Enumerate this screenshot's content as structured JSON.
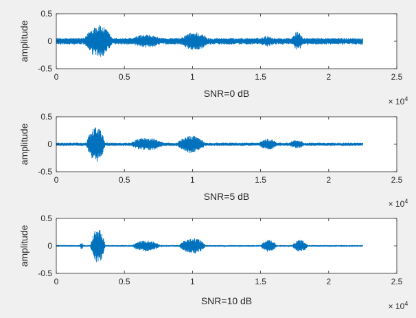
{
  "figure": {
    "background": "#f0f0f0",
    "axes_background": "#ffffff",
    "axis_color": "#262626",
    "line_color": "#0072bd"
  },
  "chart_data": [
    {
      "type": "line",
      "title": "",
      "xlabel": "SNR=0 dB",
      "ylabel": "amplitude",
      "xlim": [
        0,
        25000
      ],
      "ylim": [
        -0.5,
        0.5
      ],
      "x_multiplier_label": "× 10",
      "x_multiplier_exponent": "4",
      "xticks": [
        0,
        5000,
        10000,
        15000,
        20000,
        25000
      ],
      "xtick_labels": [
        "0",
        "0.5",
        "1",
        "1.5",
        "2",
        "2.5"
      ],
      "yticks": [
        -0.5,
        0,
        0.5
      ],
      "ytick_labels": [
        "-0.5",
        "0",
        "0.5"
      ],
      "grid": false,
      "series_x_range": [
        0,
        22500
      ],
      "bursts": [
        {
          "x": [
            2000,
            4200
          ],
          "amplitude": 0.3
        },
        {
          "x": [
            5200,
            8000
          ],
          "amplitude": 0.12
        },
        {
          "x": [
            9000,
            11300
          ],
          "amplitude": 0.17
        },
        {
          "x": [
            14800,
            16200
          ],
          "amplitude": 0.1
        },
        {
          "x": [
            17200,
            18200
          ],
          "amplitude": 0.17
        }
      ],
      "noise_amplitude": 0.06
    },
    {
      "type": "line",
      "title": "",
      "xlabel": "SNR=5 dB",
      "ylabel": "amplitude",
      "xlim": [
        0,
        25000
      ],
      "ylim": [
        -0.5,
        0.5
      ],
      "x_multiplier_label": "× 10",
      "x_multiplier_exponent": "4",
      "xticks": [
        0,
        5000,
        10000,
        15000,
        20000,
        25000
      ],
      "xtick_labels": [
        "0",
        "0.5",
        "1",
        "1.5",
        "2",
        "2.5"
      ],
      "yticks": [
        -0.5,
        0,
        0.5
      ],
      "ytick_labels": [
        "-0.5",
        "0",
        "0.5"
      ],
      "grid": false,
      "series_x_range": [
        0,
        22500
      ],
      "bursts": [
        {
          "x": [
            2200,
            3600
          ],
          "amplitude": 0.33
        },
        {
          "x": [
            5300,
            8000
          ],
          "amplitude": 0.12
        },
        {
          "x": [
            8800,
            11000
          ],
          "amplitude": 0.16
        },
        {
          "x": [
            14800,
            16300
          ],
          "amplitude": 0.1
        },
        {
          "x": [
            17000,
            18300
          ],
          "amplitude": 0.08
        }
      ],
      "noise_amplitude": 0.03
    },
    {
      "type": "line",
      "title": "",
      "xlabel": "SNR=10 dB",
      "ylabel": "amplitude",
      "xlim": [
        0,
        25000
      ],
      "ylim": [
        -0.5,
        0.5
      ],
      "x_multiplier_label": "× 10",
      "x_multiplier_exponent": "4",
      "xticks": [
        0,
        5000,
        10000,
        15000,
        20000,
        25000
      ],
      "xtick_labels": [
        "0",
        "0.5",
        "1",
        "1.5",
        "2",
        "2.5"
      ],
      "yticks": [
        -0.5,
        0,
        0.5
      ],
      "ytick_labels": [
        "-0.5",
        "0",
        "0.5"
      ],
      "grid": false,
      "series_x_range": [
        0,
        22500
      ],
      "bursts": [
        {
          "x": [
            1700,
            2000
          ],
          "amplitude": 0.06
        },
        {
          "x": [
            2500,
            3600
          ],
          "amplitude": 0.32
        },
        {
          "x": [
            5500,
            7700
          ],
          "amplitude": 0.1
        },
        {
          "x": [
            9000,
            11000
          ],
          "amplitude": 0.15
        },
        {
          "x": [
            15000,
            16200
          ],
          "amplitude": 0.11
        },
        {
          "x": [
            17300,
            18500
          ],
          "amplitude": 0.11
        }
      ],
      "noise_amplitude": 0.015
    }
  ]
}
